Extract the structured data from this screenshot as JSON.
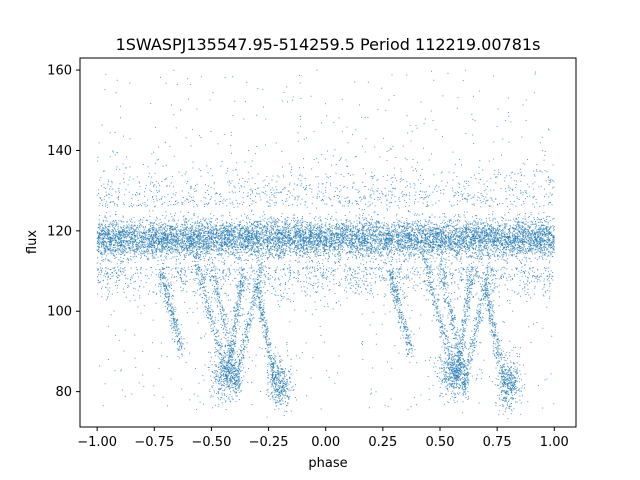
{
  "chart_data": {
    "type": "scatter",
    "title": "1SWASPJ135547.95-514259.5 Period 112219.00781s",
    "xlabel": "phase",
    "ylabel": "flux",
    "xlim": [
      -1.075,
      1.095
    ],
    "ylim": [
      71.2,
      163.0
    ],
    "xticks": [
      -1.0,
      -0.75,
      -0.5,
      -0.25,
      0.0,
      0.25,
      0.5,
      0.75,
      1.0
    ],
    "xtick_labels": [
      "−1.00",
      "−0.75",
      "−0.50",
      "−0.25",
      "0.00",
      "0.25",
      "0.50",
      "0.75",
      "1.00"
    ],
    "yticks": [
      80,
      100,
      120,
      140,
      160
    ],
    "ytick_labels": [
      "80",
      "100",
      "120",
      "140",
      "160"
    ],
    "grid": false,
    "legend": "none",
    "marker_color": "#1f77b4",
    "x_range": [
      -1.0,
      1.0
    ],
    "baseline_flux": {
      "center": 118,
      "min": 111,
      "max": 126
    },
    "dip_tracks": [
      {
        "phase_start": -0.57,
        "phase_end": -0.43,
        "flux_start": 113,
        "flux_end": 83
      },
      {
        "phase_start": -0.5,
        "phase_end": -0.38,
        "flux_start": 112,
        "flux_end": 80
      },
      {
        "phase_start": -0.36,
        "phase_end": -0.43,
        "flux_start": 110,
        "flux_end": 83
      },
      {
        "phase_start": -0.28,
        "phase_end": -0.4,
        "flux_start": 112,
        "flux_end": 81
      },
      {
        "phase_start": -0.72,
        "phase_end": -0.63,
        "flux_start": 110,
        "flux_end": 90
      },
      {
        "phase_start": -0.3,
        "phase_end": -0.22,
        "flux_start": 106,
        "flux_end": 83
      },
      {
        "phase_start": 0.43,
        "phase_end": 0.57,
        "flux_start": 113,
        "flux_end": 83
      },
      {
        "phase_start": 0.5,
        "phase_end": 0.62,
        "flux_start": 112,
        "flux_end": 80
      },
      {
        "phase_start": 0.64,
        "phase_end": 0.57,
        "flux_start": 110,
        "flux_end": 83
      },
      {
        "phase_start": 0.72,
        "phase_end": 0.6,
        "flux_start": 112,
        "flux_end": 81
      },
      {
        "phase_start": 0.28,
        "phase_end": 0.37,
        "flux_start": 110,
        "flux_end": 90
      },
      {
        "phase_start": 0.7,
        "phase_end": 0.78,
        "flux_start": 106,
        "flux_end": 83
      }
    ],
    "dip_clusters": [
      {
        "phase": -0.44,
        "flux": 84,
        "spread_phase": 0.07,
        "spread_flux": 3
      },
      {
        "phase": 0.56,
        "flux": 84,
        "spread_phase": 0.07,
        "spread_flux": 3
      },
      {
        "phase": -0.2,
        "flux": 82,
        "spread_phase": 0.05,
        "spread_flux": 3
      },
      {
        "phase": 0.8,
        "flux": 82,
        "spread_phase": 0.05,
        "spread_flux": 3
      }
    ],
    "outlier_flux_range": [
      75,
      160
    ]
  }
}
